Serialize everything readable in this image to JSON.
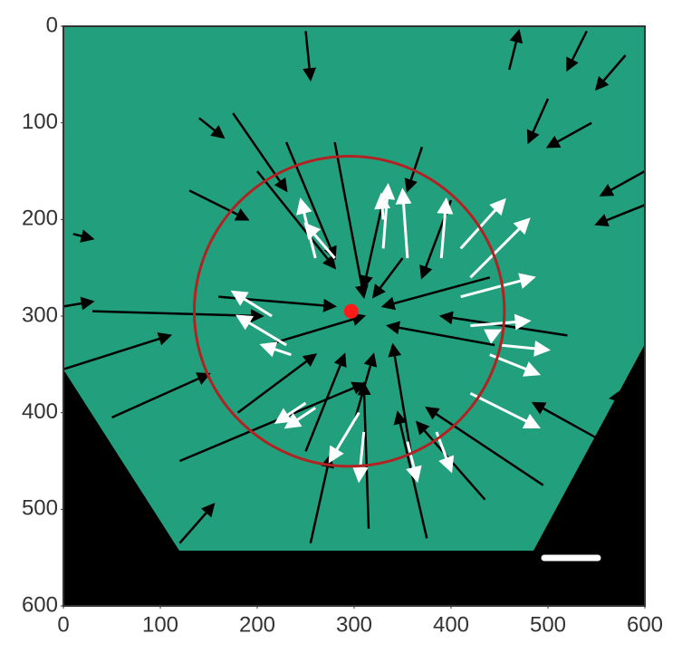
{
  "chart_data": {
    "type": "quiver",
    "xlim": [
      0,
      600
    ],
    "ylim": [
      600,
      0
    ],
    "xticks": [
      0,
      100,
      200,
      300,
      400,
      500,
      600
    ],
    "yticks": [
      0,
      100,
      200,
      300,
      400,
      500,
      600
    ],
    "series": [
      {
        "color": "#000000",
        "x": [
          250,
          175,
          140,
          130,
          10,
          0,
          30,
          0,
          50,
          120,
          120,
          255,
          315,
          375,
          435,
          495,
          575,
          595,
          520,
          600,
          600,
          580,
          545,
          500,
          460,
          540,
          370,
          400,
          230,
          200,
          280,
          330,
          350,
          440,
          445,
          300,
          250,
          360,
          180,
          210,
          160
        ],
        "y": [
          5,
          90,
          95,
          170,
          215,
          290,
          295,
          355,
          405,
          450,
          535,
          535,
          520,
          530,
          490,
          475,
          440,
          380,
          320,
          150,
          185,
          30,
          100,
          75,
          45,
          5,
          125,
          180,
          120,
          150,
          120,
          180,
          240,
          260,
          330,
          410,
          440,
          450,
          400,
          330,
          280
        ],
        "u": [
          5,
          55,
          25,
          60,
          20,
          30,
          175,
          110,
          100,
          190,
          35,
          20,
          -5,
          -30,
          -70,
          -120,
          -90,
          -30,
          -130,
          -45,
          -50,
          -30,
          -45,
          -20,
          10,
          -20,
          -15,
          -30,
          50,
          80,
          30,
          -20,
          -30,
          -110,
          -110,
          20,
          40,
          -20,
          80,
          100,
          120
        ],
        "v": [
          50,
          80,
          20,
          30,
          5,
          -5,
          5,
          -35,
          -45,
          -80,
          -40,
          -90,
          -150,
          -130,
          -80,
          -80,
          -50,
          5,
          -20,
          25,
          20,
          35,
          25,
          45,
          -40,
          40,
          45,
          80,
          120,
          100,
          160,
          90,
          40,
          30,
          -20,
          -70,
          -100,
          -120,
          -60,
          -30,
          10
        ]
      },
      {
        "color": "#ffffff",
        "x": [
          330,
          355,
          390,
          410,
          420,
          280,
          260,
          215,
          230,
          235,
          250,
          260,
          305,
          385,
          420,
          440,
          420,
          440,
          410,
          450,
          310,
          355,
          330
        ],
        "y": [
          230,
          240,
          240,
          230,
          260,
          240,
          240,
          300,
          330,
          340,
          390,
          395,
          400,
          420,
          380,
          340,
          310,
          320,
          280,
          330,
          420,
          430,
          200
        ],
        "u": [
          5,
          -5,
          5,
          45,
          60,
          -30,
          -15,
          -40,
          -50,
          -30,
          -30,
          -30,
          -30,
          15,
          70,
          50,
          60,
          10,
          75,
          50,
          -5,
          10,
          -2
        ],
        "v": [
          -65,
          -70,
          -60,
          -50,
          -60,
          -35,
          -60,
          -25,
          -30,
          -10,
          20,
          20,
          50,
          40,
          35,
          20,
          -5,
          -5,
          -20,
          5,
          50,
          40,
          -25
        ]
      }
    ],
    "circle": {
      "x": 295,
      "y": 295,
      "r": 160,
      "color": "#b22222"
    },
    "point": {
      "x": 297,
      "y": 295,
      "color": "#ff1a1a"
    }
  }
}
